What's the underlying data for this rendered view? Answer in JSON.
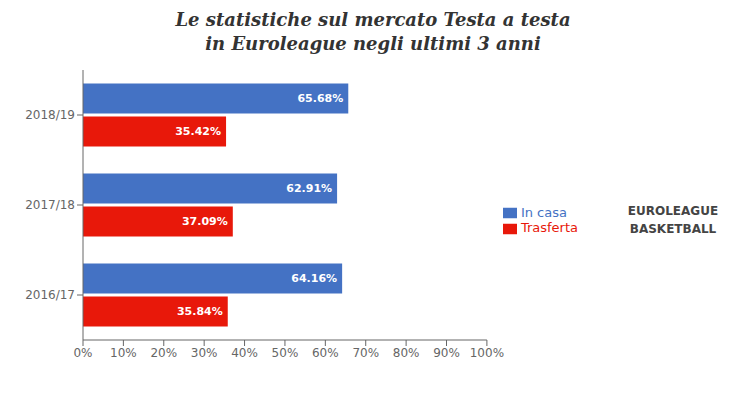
{
  "chart_data": {
    "type": "bar",
    "orientation": "horizontal",
    "title": "Le statistiche sul mercato Testa a testa",
    "subtitle": "in Euroleague negli ultimi 3 anni",
    "categories": [
      "2018/19",
      "2017/18",
      "2016/17"
    ],
    "series": [
      {
        "name": "In casa",
        "color": "#4472C4",
        "values": [
          65.68,
          62.91,
          64.16
        ],
        "value_labels": [
          "65.68%",
          "62.91%",
          "64.16%"
        ]
      },
      {
        "name": "Trasferta",
        "color": "#E8180A",
        "values": [
          35.42,
          37.09,
          35.84
        ],
        "value_labels": [
          "35.42%",
          "37.09%",
          "35.84%"
        ]
      }
    ],
    "xlim": [
      0,
      100
    ],
    "xticks": [
      {
        "value": 0,
        "label": "0%"
      },
      {
        "value": 10,
        "label": "10%"
      },
      {
        "value": 20,
        "label": "20%"
      },
      {
        "value": 30,
        "label": "30%"
      },
      {
        "value": 40,
        "label": "40%"
      },
      {
        "value": 50,
        "label": "50%"
      },
      {
        "value": 60,
        "label": "60%"
      },
      {
        "value": 70,
        "label": "70%"
      },
      {
        "value": 80,
        "label": "80%"
      },
      {
        "value": 90,
        "label": "90%"
      },
      {
        "value": 100,
        "label": "100%"
      }
    ],
    "data_labels": true,
    "grid": false,
    "legend": "right",
    "annotations": [
      "EUROLEAGUE",
      "BASKETBALL"
    ]
  }
}
